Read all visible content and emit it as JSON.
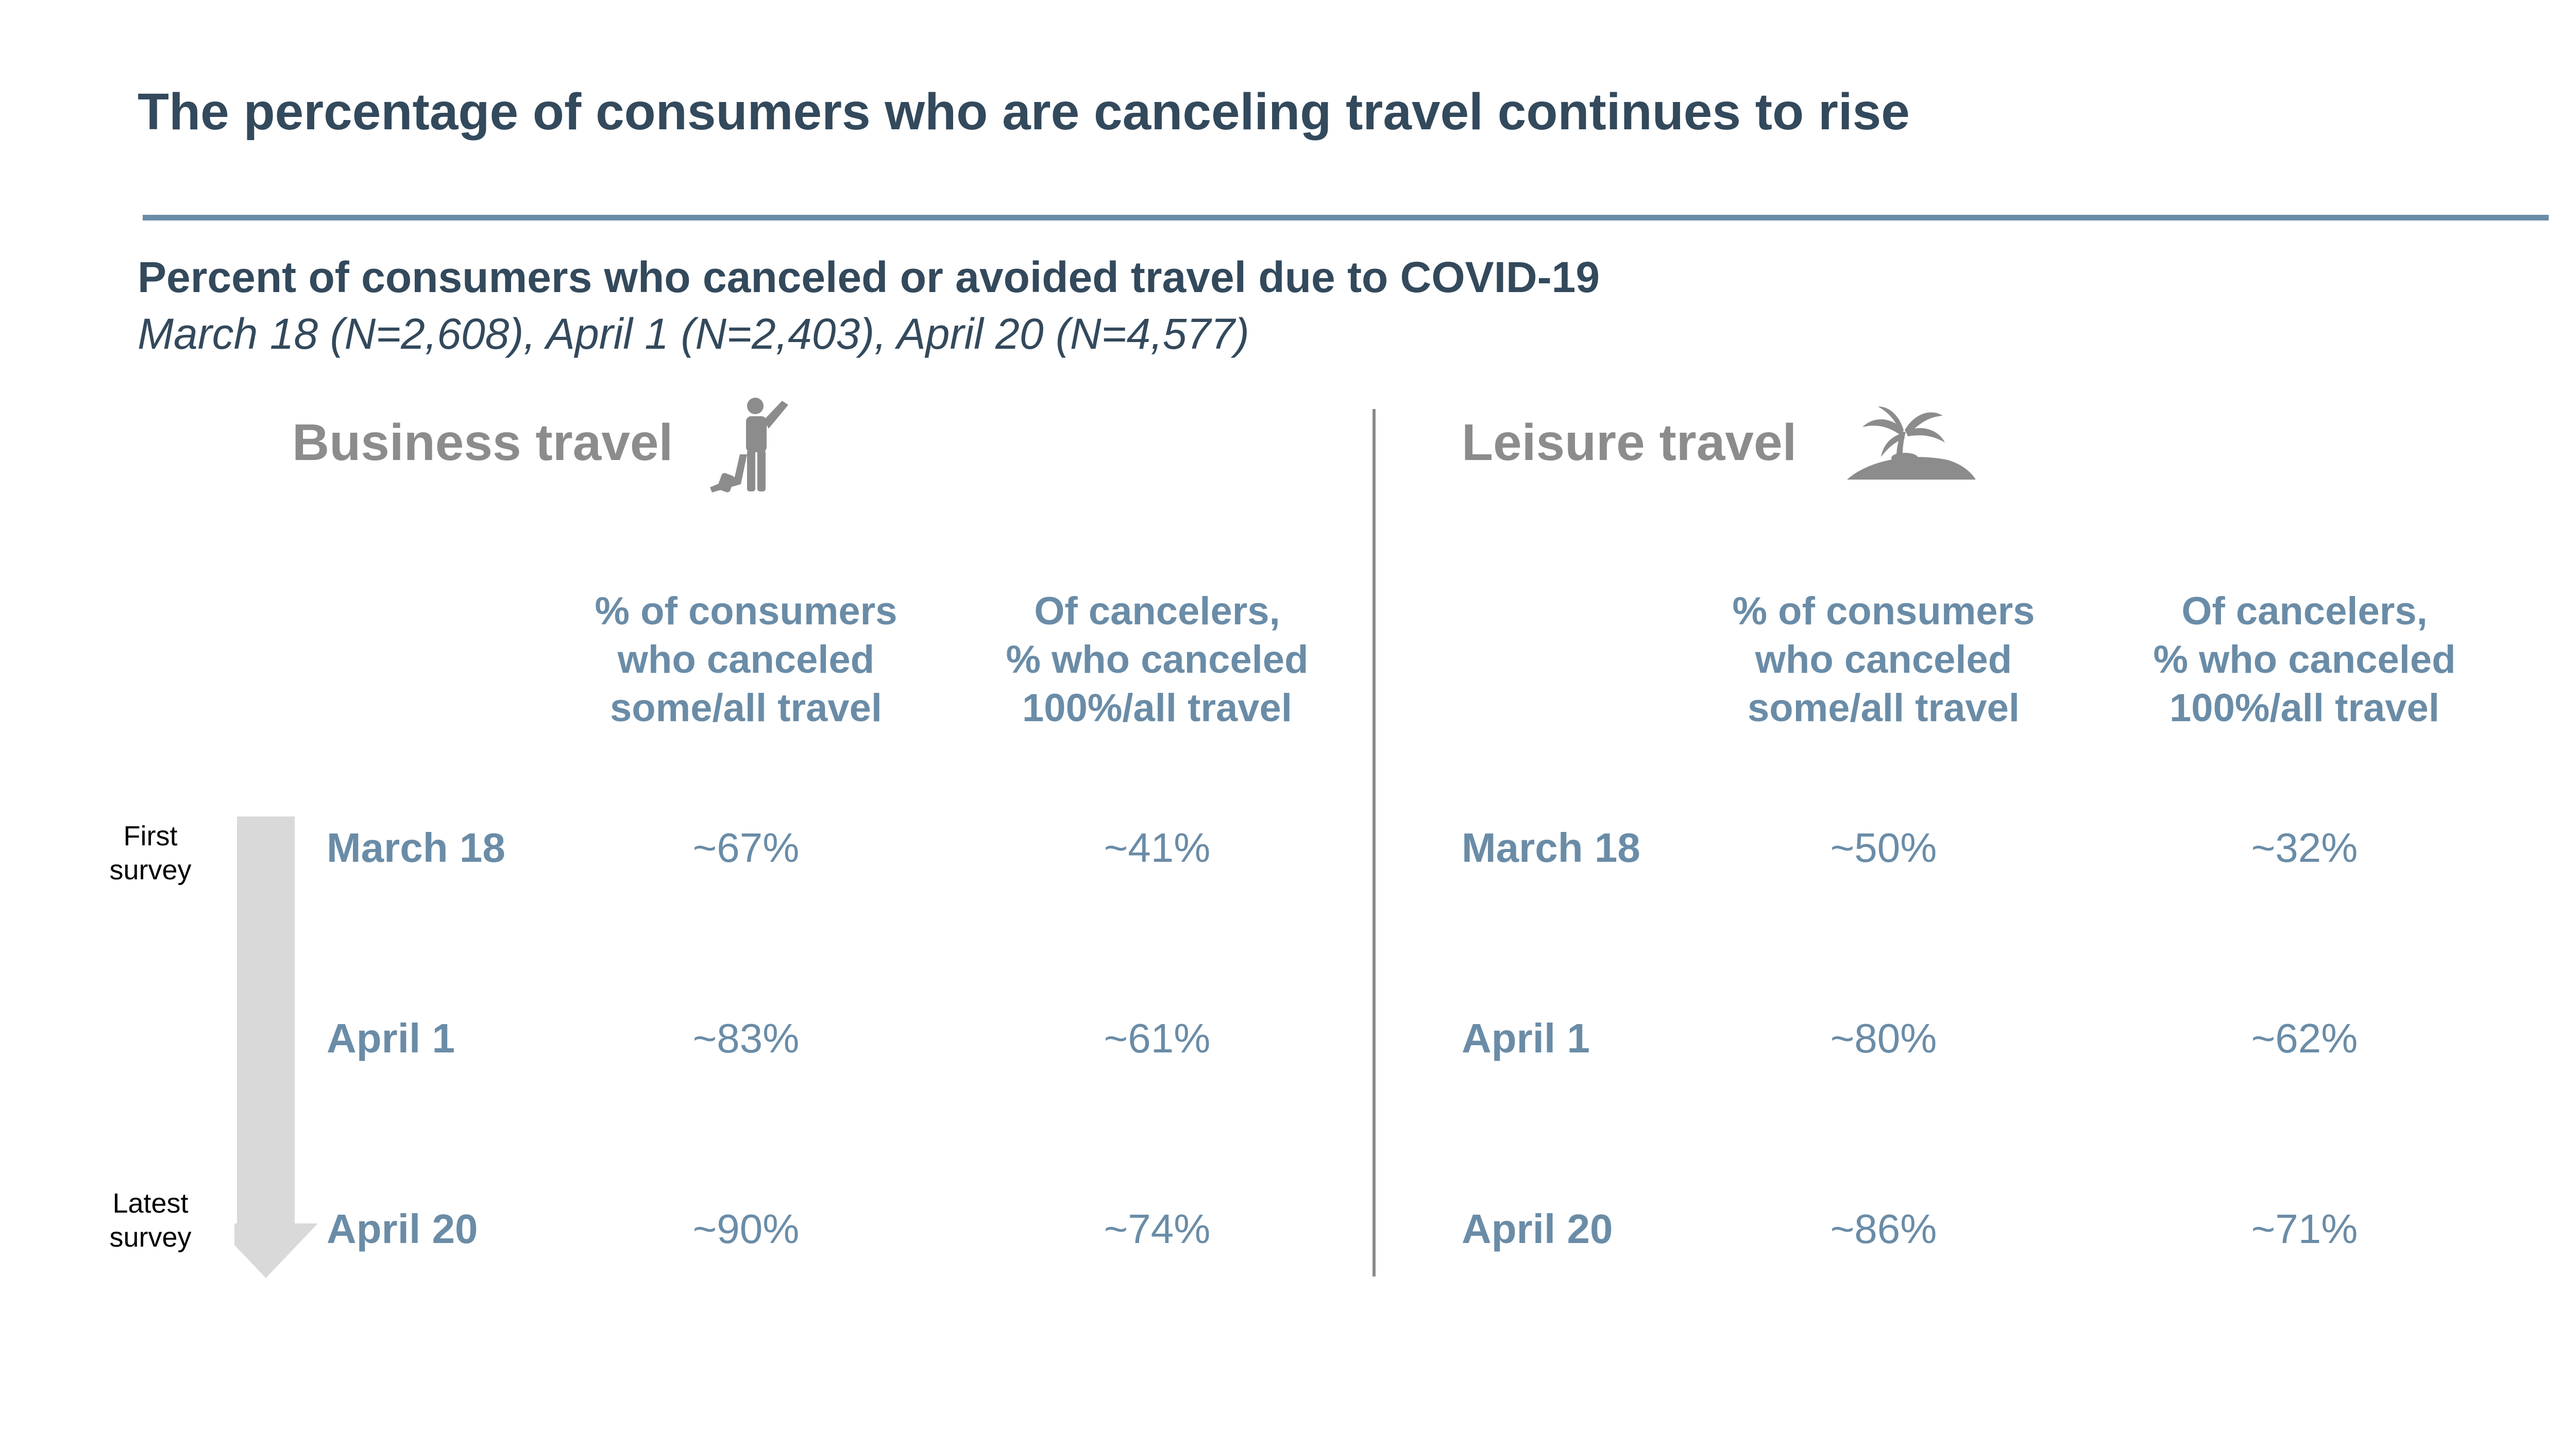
{
  "title": "The percentage of consumers who are canceling travel continues to rise",
  "subtitle": "Percent of consumers who canceled or avoided travel due to COVID-19",
  "samples": "March 18 (N=2,608), April 1 (N=2,403), April 20 (N=4,577)",
  "colors": {
    "heading": "#33495c",
    "accent": "#6a8ca7",
    "section_gray": "#8c8c8c",
    "arrow": "#d9d9d9"
  },
  "timeline": {
    "first_label": [
      "First",
      "survey"
    ],
    "latest_label": [
      "Latest",
      "survey"
    ]
  },
  "business": {
    "title": "Business travel",
    "icon": "traveler-with-suitcase-icon",
    "col1": [
      "% of consumers",
      "who canceled",
      "some/all travel"
    ],
    "col2": [
      "Of cancelers,",
      "% who canceled",
      "100%/all travel"
    ],
    "rows": [
      {
        "label": "March 18",
        "some": "~67%",
        "all": "~41%"
      },
      {
        "label": "April 1",
        "some": "~83%",
        "all": "~61%"
      },
      {
        "label": "April 20",
        "some": "~90%",
        "all": "~74%"
      }
    ]
  },
  "leisure": {
    "title": "Leisure travel",
    "icon": "palm-island-icon",
    "col1": [
      "% of consumers",
      "who canceled",
      "some/all travel"
    ],
    "col2": [
      "Of cancelers,",
      "% who canceled",
      "100%/all travel"
    ],
    "rows": [
      {
        "label": "March 18",
        "some": "~50%",
        "all": "~32%"
      },
      {
        "label": "April 1",
        "some": "~80%",
        "all": "~62%"
      },
      {
        "label": "April 20",
        "some": "~86%",
        "all": "~71%"
      }
    ]
  }
}
